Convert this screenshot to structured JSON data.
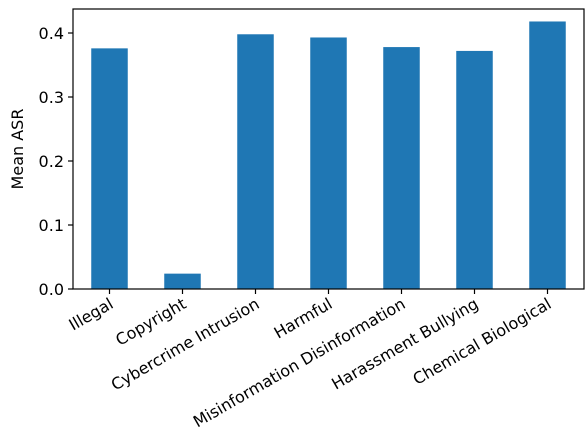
{
  "chart_data": {
    "type": "bar",
    "title": "",
    "xlabel": "",
    "ylabel": "Mean ASR",
    "categories": [
      "Illegal",
      "Copyright",
      "Cybercrime Intrusion",
      "Harmful",
      "Misinformation Disinformation",
      "Harassment Bullying",
      "Chemical Biological"
    ],
    "values": [
      0.376,
      0.024,
      0.398,
      0.393,
      0.378,
      0.372,
      0.418
    ],
    "ylim": [
      0,
      0.4375
    ],
    "yticks": [
      0.0,
      0.1,
      0.2,
      0.3,
      0.4
    ],
    "ytick_labels": [
      "0.0",
      "0.1",
      "0.2",
      "0.3",
      "0.4"
    ],
    "grid": false,
    "legend": "none",
    "bar_color": "#1f77b4",
    "axis_color": "#000000"
  }
}
